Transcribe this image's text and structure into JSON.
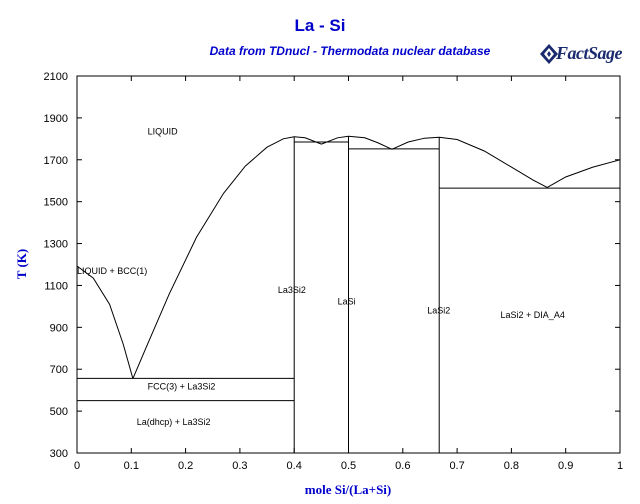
{
  "chart_data": {
    "type": "line",
    "title": "La - Si",
    "subtitle": "Data from TDnucl - Thermodata nuclear database",
    "logo_text": "FactSage",
    "xlabel": "mole Si/(La+Si)",
    "ylabel": "T (K)",
    "xlim": [
      0,
      1
    ],
    "ylim": [
      300,
      2100
    ],
    "x_ticks": [
      "0",
      "0.1",
      "0.2",
      "0.3",
      "0.4",
      "0.5",
      "0.6",
      "0.7",
      "0.8",
      "0.9",
      "1"
    ],
    "y_ticks": [
      "300",
      "500",
      "700",
      "900",
      "1100",
      "1300",
      "1500",
      "1700",
      "1900",
      "2100"
    ],
    "x_tick_values": [
      0,
      0.1,
      0.2,
      0.3,
      0.4,
      0.5,
      0.6,
      0.7,
      0.8,
      0.9,
      1
    ],
    "y_tick_values": [
      300,
      500,
      700,
      900,
      1100,
      1300,
      1500,
      1700,
      1900,
      2100
    ],
    "grid": false,
    "series": [
      {
        "points": [
          [
            0,
            1193
          ],
          [
            0.03,
            1135
          ],
          [
            0.06,
            1010
          ],
          [
            0.085,
            820
          ],
          [
            0.103,
            655
          ]
        ]
      },
      {
        "points": [
          [
            0.103,
            655
          ],
          [
            0.13,
            820
          ],
          [
            0.17,
            1060
          ],
          [
            0.22,
            1330
          ],
          [
            0.27,
            1540
          ],
          [
            0.31,
            1670
          ],
          [
            0.35,
            1760
          ],
          [
            0.38,
            1800
          ],
          [
            0.4,
            1810
          ],
          [
            0.42,
            1805
          ],
          [
            0.45,
            1775
          ]
        ]
      },
      {
        "points": [
          [
            0.45,
            1775
          ],
          [
            0.48,
            1805
          ],
          [
            0.5,
            1812
          ],
          [
            0.53,
            1805
          ],
          [
            0.555,
            1780
          ],
          [
            0.58,
            1750
          ]
        ]
      },
      {
        "points": [
          [
            0.58,
            1750
          ],
          [
            0.61,
            1785
          ],
          [
            0.64,
            1803
          ],
          [
            0.667,
            1808
          ],
          [
            0.7,
            1797
          ],
          [
            0.75,
            1742
          ],
          [
            0.8,
            1665
          ],
          [
            0.84,
            1603
          ],
          [
            0.866,
            1568
          ]
        ]
      },
      {
        "points": [
          [
            0.866,
            1568
          ],
          [
            0.9,
            1618
          ],
          [
            0.95,
            1665
          ],
          [
            1.0,
            1700
          ]
        ]
      },
      {
        "points": [
          [
            0,
            656
          ],
          [
            0.4,
            656
          ]
        ]
      },
      {
        "points": [
          [
            0,
            550
          ],
          [
            0.4,
            550
          ]
        ]
      },
      {
        "points": [
          [
            0.4,
            1785
          ],
          [
            0.5,
            1785
          ]
        ]
      },
      {
        "points": [
          [
            0.5,
            1752
          ],
          [
            0.667,
            1752
          ]
        ]
      },
      {
        "points": [
          [
            0.667,
            1565
          ],
          [
            1.0,
            1565
          ]
        ]
      },
      {
        "points": [
          [
            0.4,
            300
          ],
          [
            0.4,
            1810
          ]
        ]
      },
      {
        "points": [
          [
            0.5,
            300
          ],
          [
            0.5,
            1812
          ]
        ]
      },
      {
        "points": [
          [
            0.667,
            300
          ],
          [
            0.667,
            1808
          ]
        ]
      }
    ],
    "annotations": [
      {
        "text": "LIQUID",
        "x": 0.13,
        "y": 1820
      },
      {
        "text": "LIQUID + BCC(1)",
        "x": 0.0,
        "y": 1155
      },
      {
        "text": "La3Si2",
        "x": 0.37,
        "y": 1065
      },
      {
        "text": "LaSi",
        "x": 0.48,
        "y": 1010
      },
      {
        "text": "LaSi2",
        "x": 0.645,
        "y": 965
      },
      {
        "text": "LaSi2 + DIA_A4",
        "x": 0.78,
        "y": 945
      },
      {
        "text": "FCC(3) + La3Si2",
        "x": 0.13,
        "y": 604
      },
      {
        "text": "La(dhcp) + La3Si2",
        "x": 0.11,
        "y": 434
      }
    ]
  }
}
